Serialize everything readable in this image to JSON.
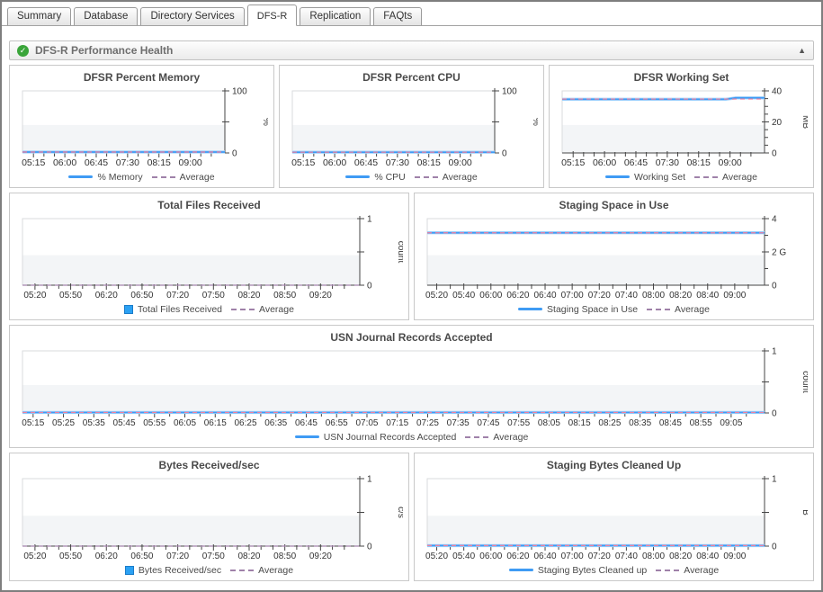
{
  "tabs": [
    {
      "label": "Summary",
      "active": false
    },
    {
      "label": "Database",
      "active": false
    },
    {
      "label": "Directory Services",
      "active": false
    },
    {
      "label": "DFS-R",
      "active": true
    },
    {
      "label": "Replication",
      "active": false
    },
    {
      "label": "FAQts",
      "active": false
    }
  ],
  "header": {
    "title": "DFS-R Performance Health",
    "check_glyph": "✓",
    "collapse_glyph": "▲"
  },
  "colors": {
    "series_blue": "#3f9bf4",
    "series_halo": "#a9d4fb",
    "average_overlay": "#ee7f9f",
    "average_floor": "#a583ad",
    "legend_dash": "#9f81a9",
    "bar_blue": "#2ba1f3",
    "bar_border": "#1b7cc9",
    "axis": "#454545",
    "plot_border": "#d9dbdd",
    "band": "#f3f5f7",
    "green": "#3aa53a"
  },
  "chart_data": [
    {
      "id": "dfsr-percent-memory",
      "type": "line",
      "title": "DFSR Percent Memory",
      "ylabel": "%",
      "ylim": [
        0,
        100
      ],
      "yticks": [
        {
          "v": 0,
          "label": "0"
        },
        {
          "v": 50,
          "label": ""
        },
        {
          "v": 100,
          "label": "100"
        }
      ],
      "xticklabels": [
        "05:15",
        "06:00",
        "06:45",
        "07:30",
        "08:15",
        "09:00"
      ],
      "minors_between": 2,
      "xfont": 10.5,
      "series": [
        {
          "name": "% Memory",
          "style": "line",
          "values": [
            1.5,
            1.5
          ]
        }
      ],
      "average": 1.5,
      "average_style": "overlay",
      "legend": [
        {
          "label": "% Memory",
          "swatch": "line"
        },
        {
          "label": "Average",
          "swatch": "dash"
        }
      ]
    },
    {
      "id": "dfsr-percent-cpu",
      "type": "line",
      "title": "DFSR Percent CPU",
      "ylabel": "%",
      "ylim": [
        0,
        100
      ],
      "yticks": [
        {
          "v": 0,
          "label": "0"
        },
        {
          "v": 50,
          "label": ""
        },
        {
          "v": 100,
          "label": "100"
        }
      ],
      "xticklabels": [
        "05:15",
        "06:00",
        "06:45",
        "07:30",
        "08:15",
        "09:00"
      ],
      "minors_between": 2,
      "xfont": 10.5,
      "series": [
        {
          "name": "% CPU",
          "style": "line",
          "values": [
            1.2,
            1.2
          ]
        }
      ],
      "average": 1.2,
      "average_style": "overlay",
      "legend": [
        {
          "label": "% CPU",
          "swatch": "line"
        },
        {
          "label": "Average",
          "swatch": "dash"
        }
      ]
    },
    {
      "id": "dfsr-working-set",
      "type": "line",
      "title": "DFSR Working Set",
      "ylabel": "MB",
      "ylim": [
        0,
        40
      ],
      "yticks": [
        {
          "v": 0,
          "label": "0"
        },
        {
          "v": 20,
          "label": "20"
        },
        {
          "v": 40,
          "label": "40"
        }
      ],
      "yminor_step": 5,
      "xticklabels": [
        "05:15",
        "06:00",
        "06:45",
        "07:30",
        "08:15",
        "09:00"
      ],
      "minors_between": 2,
      "xfont": 10.5,
      "series": [
        {
          "name": "Working Set",
          "style": "line",
          "values": [
            34.6,
            34.6,
            34.6,
            34.6,
            34.6,
            34.6,
            34.6,
            34.6,
            34.6,
            34.6,
            34.6,
            34.6,
            34.6,
            34.6,
            34.6,
            34.6,
            34.6,
            34.6,
            35.5,
            35.5,
            35.5,
            35.5
          ]
        }
      ],
      "average": 34.75,
      "average_style": "overlay",
      "legend": [
        {
          "label": "Working Set",
          "swatch": "line"
        },
        {
          "label": "Average",
          "swatch": "dash"
        }
      ]
    },
    {
      "id": "total-files-received",
      "type": "bar",
      "title": "Total Files Received",
      "ylabel": "count",
      "ylim": [
        0,
        1
      ],
      "yticks": [
        {
          "v": 0,
          "label": "0"
        },
        {
          "v": 0.5,
          "label": ""
        },
        {
          "v": 1,
          "label": "1"
        }
      ],
      "xticklabels": [
        "05:20",
        "05:50",
        "06:20",
        "06:50",
        "07:20",
        "07:50",
        "08:20",
        "08:50",
        "09:20"
      ],
      "minors_between": 2,
      "xfont": 10,
      "series": [
        {
          "name": "Total Files Received",
          "style": "bar",
          "values": [
            0,
            0
          ]
        }
      ],
      "average": 0,
      "average_style": "floor",
      "legend": [
        {
          "label": "Total Files Received",
          "swatch": "bar"
        },
        {
          "label": "Average",
          "swatch": "dash"
        }
      ]
    },
    {
      "id": "staging-space-in-use",
      "type": "line",
      "title": "Staging Space in Use",
      "ylabel": "",
      "ylim": [
        0,
        4
      ],
      "yticks": [
        {
          "v": 0,
          "label": "0"
        },
        {
          "v": 2,
          "label": "2 G"
        },
        {
          "v": 4,
          "label": "4"
        }
      ],
      "yminor_step": 1,
      "xticklabels": [
        "05:20",
        "05:40",
        "06:00",
        "06:20",
        "06:40",
        "07:00",
        "07:20",
        "07:40",
        "08:00",
        "08:20",
        "08:40",
        "09:00"
      ],
      "minors_between": 1,
      "xfont": 10,
      "series": [
        {
          "name": "Staging Space in Use",
          "style": "line",
          "values": [
            3.15,
            3.15
          ]
        }
      ],
      "average": 3.15,
      "average_style": "overlay",
      "legend": [
        {
          "label": "Staging Space in Use",
          "swatch": "line"
        },
        {
          "label": "Average",
          "swatch": "dash"
        }
      ]
    },
    {
      "id": "usn-journal-records-accepted",
      "type": "line",
      "title": "USN Journal Records Accepted",
      "ylabel": "count",
      "ylim": [
        0,
        1
      ],
      "yticks": [
        {
          "v": 0,
          "label": "0"
        },
        {
          "v": 0.5,
          "label": ""
        },
        {
          "v": 1,
          "label": "1"
        }
      ],
      "xticklabels": [
        "05:15",
        "05:25",
        "05:35",
        "05:45",
        "05:55",
        "06:05",
        "06:15",
        "06:25",
        "06:35",
        "06:45",
        "06:55",
        "07:05",
        "07:15",
        "07:25",
        "07:35",
        "07:45",
        "07:55",
        "08:05",
        "08:15",
        "08:25",
        "08:35",
        "08:45",
        "08:55",
        "09:05"
      ],
      "minors_between": 1,
      "xfont": 10,
      "series": [
        {
          "name": "USN Journal Records Accepted",
          "style": "line",
          "values": [
            0.008,
            0.008
          ]
        }
      ],
      "average": 0.008,
      "average_style": "overlay",
      "legend": [
        {
          "label": "USN Journal Records Accepted",
          "swatch": "line"
        },
        {
          "label": "Average",
          "swatch": "dash"
        }
      ]
    },
    {
      "id": "bytes-received-sec",
      "type": "bar",
      "title": "Bytes Received/sec",
      "ylabel": "c/s",
      "ylim": [
        0,
        1
      ],
      "yticks": [
        {
          "v": 0,
          "label": "0"
        },
        {
          "v": 0.5,
          "label": ""
        },
        {
          "v": 1,
          "label": "1"
        }
      ],
      "xticklabels": [
        "05:20",
        "05:50",
        "06:20",
        "06:50",
        "07:20",
        "07:50",
        "08:20",
        "08:50",
        "09:20"
      ],
      "minors_between": 2,
      "xfont": 10,
      "series": [
        {
          "name": "Bytes Received/sec",
          "style": "bar",
          "values": [
            0,
            0
          ]
        }
      ],
      "average": 0,
      "average_style": "floor",
      "legend": [
        {
          "label": "Bytes Received/sec",
          "swatch": "bar"
        },
        {
          "label": "Average",
          "swatch": "dash"
        }
      ]
    },
    {
      "id": "staging-bytes-cleaned-up",
      "type": "line",
      "title": "Staging Bytes Cleaned Up",
      "ylabel": "B",
      "ylim": [
        0,
        1
      ],
      "yticks": [
        {
          "v": 0,
          "label": "0"
        },
        {
          "v": 0.5,
          "label": ""
        },
        {
          "v": 1,
          "label": "1"
        }
      ],
      "xticklabels": [
        "05:20",
        "05:40",
        "06:00",
        "06:20",
        "06:40",
        "07:00",
        "07:20",
        "07:40",
        "08:00",
        "08:20",
        "08:40",
        "09:00"
      ],
      "minors_between": 1,
      "xfont": 10,
      "series": [
        {
          "name": "Staging Bytes Cleaned up",
          "style": "line",
          "values": [
            0.008,
            0.008
          ]
        }
      ],
      "average": 0.008,
      "average_style": "overlay",
      "legend": [
        {
          "label": "Staging Bytes Cleaned up",
          "swatch": "line"
        },
        {
          "label": "Average",
          "swatch": "dash"
        }
      ]
    }
  ]
}
